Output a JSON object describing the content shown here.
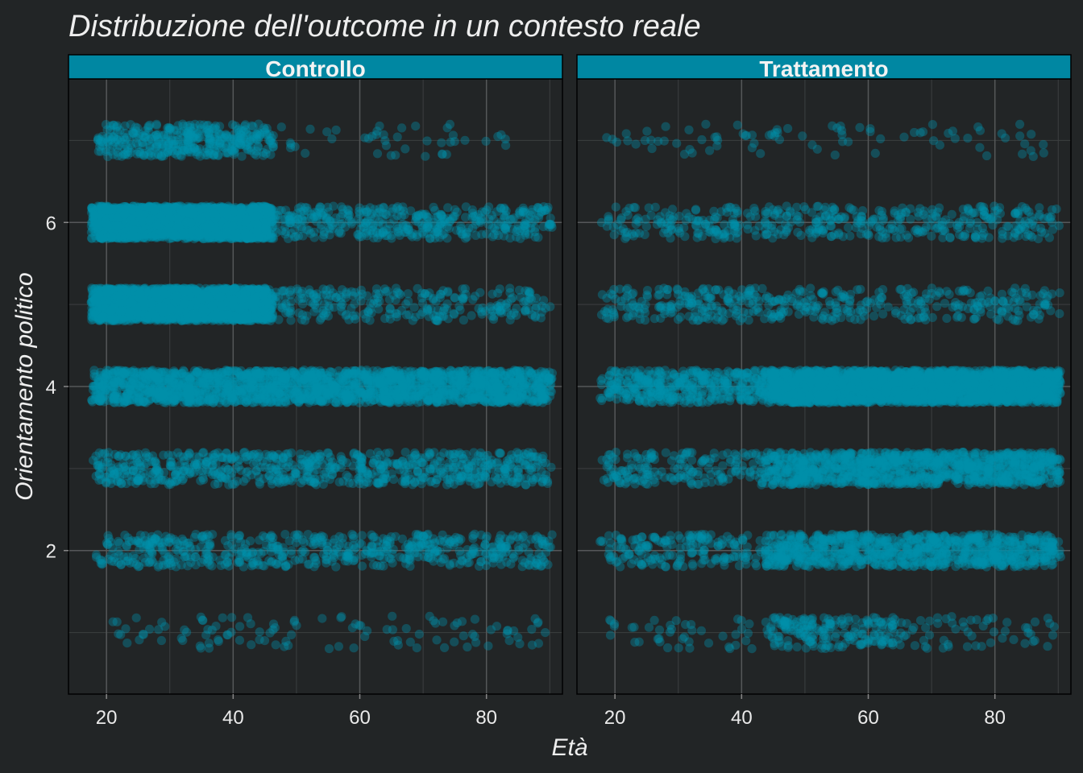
{
  "chart_data": {
    "type": "scatter",
    "title": "Distribuzione dell'outcome in un contesto reale",
    "xlabel": "Età",
    "ylabel": "Orientamento politico",
    "xlim": [
      14,
      92
    ],
    "ylim": [
      0.25,
      7.75
    ],
    "x_ticks": [
      20,
      40,
      60,
      80
    ],
    "y_ticks": [
      2,
      4,
      6
    ],
    "grid": true,
    "point_color": "#0090aa",
    "point_opacity": 0.38,
    "jitter": {
      "x": 0.4,
      "y": 0.2
    },
    "panels": [
      {
        "name": "Controllo",
        "bands": [
          {
            "y": 1,
            "segments": [
              [
                19,
                89,
                1.6
              ]
            ]
          },
          {
            "y": 2,
            "segments": [
              [
                18,
                90,
                8
              ]
            ]
          },
          {
            "y": 3,
            "segments": [
              [
                18,
                90,
                10
              ]
            ]
          },
          {
            "y": 4,
            "segments": [
              [
                18,
                90,
                30
              ]
            ]
          },
          {
            "y": 5,
            "segments": [
              [
                18,
                46,
                72
              ],
              [
                46,
                90,
                6
              ]
            ]
          },
          {
            "y": 6,
            "segments": [
              [
                18,
                46,
                78
              ],
              [
                46,
                90,
                9
              ]
            ]
          },
          {
            "y": 7,
            "segments": [
              [
                19,
                46,
                14
              ],
              [
                46,
                83,
                1.2
              ]
            ]
          }
        ]
      },
      {
        "name": "Trattamento",
        "bands": [
          {
            "y": 1,
            "segments": [
              [
                18,
                44,
                1.6
              ],
              [
                44,
                65,
                9
              ],
              [
                65,
                90,
                2.2
              ]
            ]
          },
          {
            "y": 2,
            "segments": [
              [
                18,
                44,
                7
              ],
              [
                44,
                90,
                20
              ]
            ]
          },
          {
            "y": 3,
            "segments": [
              [
                18,
                44,
                7
              ],
              [
                44,
                90,
                24
              ]
            ]
          },
          {
            "y": 4,
            "segments": [
              [
                18,
                44,
                16
              ],
              [
                44,
                90,
                55
              ]
            ]
          },
          {
            "y": 5,
            "segments": [
              [
                18,
                90,
                6
              ]
            ]
          },
          {
            "y": 6,
            "segments": [
              [
                18,
                90,
                6
              ]
            ]
          },
          {
            "y": 7,
            "segments": [
              [
                19,
                88,
                1.2
              ]
            ]
          }
        ]
      }
    ]
  }
}
